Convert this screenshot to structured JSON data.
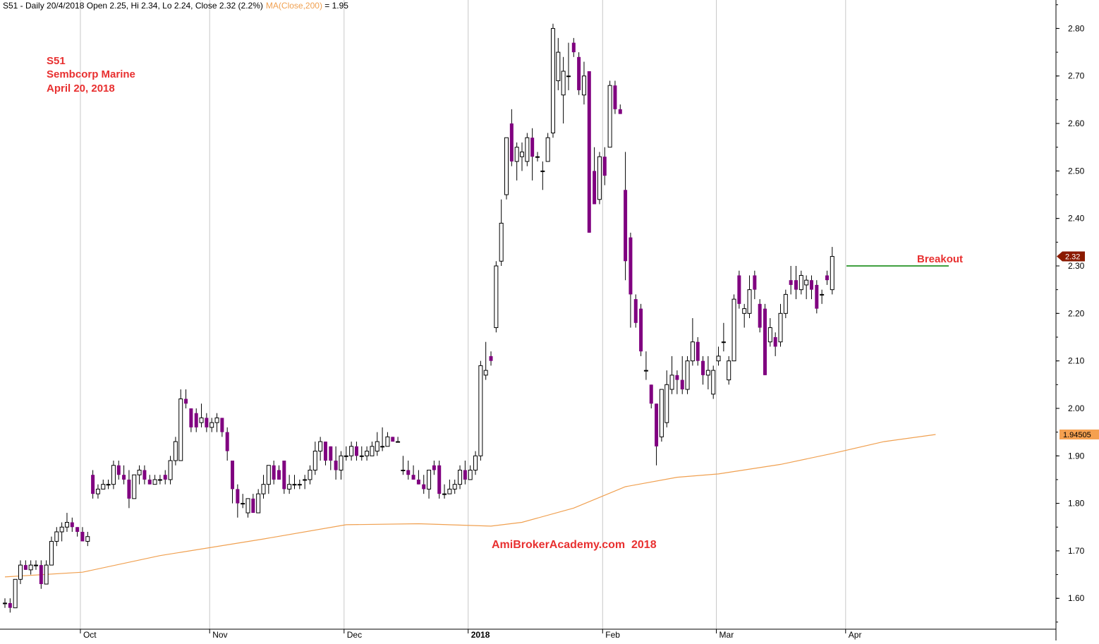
{
  "chart_data": {
    "type": "candlestick",
    "header": {
      "text": "S51 - Daily 20/4/2018 Open 2.25, Hi 2.34, Lo 2.24, Close 2.32 (2.2%)",
      "ma_label": "MA(Close,200)",
      "ma_value_text": " = 1.95"
    },
    "annotation_lines": [
      "S51",
      "Sembcorp Marine",
      "April 20, 2018"
    ],
    "watermark": "AmiBrokerAcademy.com  2018",
    "breakout_label": "Breakout",
    "breakout_level": 2.3,
    "last_price_label": "2.32",
    "ma_price_label": "1.94505",
    "y_axis": {
      "ylim": [
        1.535,
        2.86
      ],
      "ticks": [
        "1.60",
        "1.70",
        "1.80",
        "1.90",
        "2.00",
        "2.10",
        "2.20",
        "2.30",
        "2.40",
        "2.50",
        "2.60",
        "2.70",
        "2.80"
      ]
    },
    "x_axis": {
      "month_labels": [
        {
          "label": "Oct",
          "index": 15
        },
        {
          "label": "Nov",
          "index": 40
        },
        {
          "label": "Dec",
          "index": 66
        },
        {
          "label": "2018",
          "index": 90,
          "bold": true
        },
        {
          "label": "Feb",
          "index": 116
        },
        {
          "label": "Mar",
          "index": 138
        },
        {
          "label": "Apr",
          "index": 163
        }
      ]
    },
    "colors": {
      "up_fill": "#ffffff",
      "down_fill": "#800080",
      "wick": "#000000",
      "ma": "#f0a050",
      "breakout": "#008000",
      "annotation": "#e83030",
      "last_price_bg": "#8b1a00",
      "ma_tag_bg": "#f5a050"
    },
    "candles": [
      [
        1.59,
        1.6,
        1.58,
        1.59
      ],
      [
        1.59,
        1.6,
        1.57,
        1.58
      ],
      [
        1.58,
        1.64,
        1.58,
        1.64
      ],
      [
        1.64,
        1.68,
        1.63,
        1.67
      ],
      [
        1.67,
        1.68,
        1.66,
        1.66
      ],
      [
        1.66,
        1.68,
        1.65,
        1.67
      ],
      [
        1.67,
        1.68,
        1.66,
        1.67
      ],
      [
        1.67,
        1.68,
        1.62,
        1.63
      ],
      [
        1.63,
        1.68,
        1.63,
        1.67
      ],
      [
        1.67,
        1.73,
        1.67,
        1.72
      ],
      [
        1.72,
        1.75,
        1.71,
        1.74
      ],
      [
        1.74,
        1.76,
        1.72,
        1.75
      ],
      [
        1.75,
        1.78,
        1.74,
        1.76
      ],
      [
        1.76,
        1.77,
        1.74,
        1.75
      ],
      [
        1.75,
        1.75,
        1.73,
        1.74
      ],
      [
        1.74,
        1.75,
        1.72,
        1.72
      ],
      [
        1.72,
        1.74,
        1.71,
        1.73
      ],
      [
        1.86,
        1.87,
        1.81,
        1.82
      ],
      [
        1.82,
        1.84,
        1.81,
        1.83
      ],
      [
        1.83,
        1.85,
        1.83,
        1.84
      ],
      [
        1.84,
        1.85,
        1.83,
        1.84
      ],
      [
        1.84,
        1.89,
        1.83,
        1.88
      ],
      [
        1.88,
        1.89,
        1.85,
        1.86
      ],
      [
        1.86,
        1.88,
        1.84,
        1.85
      ],
      [
        1.85,
        1.87,
        1.79,
        1.81
      ],
      [
        1.81,
        1.86,
        1.81,
        1.86
      ],
      [
        1.86,
        1.88,
        1.84,
        1.87
      ],
      [
        1.87,
        1.88,
        1.84,
        1.85
      ],
      [
        1.85,
        1.86,
        1.84,
        1.84
      ],
      [
        1.84,
        1.86,
        1.84,
        1.85
      ],
      [
        1.85,
        1.86,
        1.84,
        1.85
      ],
      [
        1.86,
        1.87,
        1.84,
        1.85
      ],
      [
        1.85,
        1.9,
        1.84,
        1.89
      ],
      [
        1.89,
        1.94,
        1.88,
        1.93
      ],
      [
        1.89,
        2.04,
        1.89,
        2.02
      ],
      [
        2.02,
        2.04,
        2.0,
        2.01
      ],
      [
        2.0,
        2.0,
        1.95,
        1.96
      ],
      [
        1.99,
        2.0,
        1.95,
        1.96
      ],
      [
        1.97,
        2.01,
        1.96,
        1.98
      ],
      [
        1.98,
        1.99,
        1.95,
        1.96
      ],
      [
        1.96,
        1.98,
        1.95,
        1.97
      ],
      [
        1.97,
        1.99,
        1.95,
        1.98
      ],
      [
        1.98,
        1.98,
        1.94,
        1.95
      ],
      [
        1.95,
        1.96,
        1.89,
        1.91
      ],
      [
        1.89,
        1.89,
        1.8,
        1.83
      ],
      [
        1.83,
        1.84,
        1.77,
        1.8
      ],
      [
        1.8,
        1.82,
        1.79,
        1.8
      ],
      [
        1.78,
        1.81,
        1.77,
        1.81
      ],
      [
        1.81,
        1.82,
        1.78,
        1.78
      ],
      [
        1.78,
        1.83,
        1.78,
        1.82
      ],
      [
        1.82,
        1.86,
        1.81,
        1.84
      ],
      [
        1.84,
        1.88,
        1.82,
        1.88
      ],
      [
        1.88,
        1.89,
        1.84,
        1.85
      ],
      [
        1.87,
        1.88,
        1.85,
        1.85
      ],
      [
        1.89,
        1.89,
        1.82,
        1.83
      ],
      [
        1.83,
        1.86,
        1.82,
        1.84
      ],
      [
        1.84,
        1.86,
        1.83,
        1.84
      ],
      [
        1.84,
        1.85,
        1.83,
        1.84
      ],
      [
        1.85,
        1.86,
        1.83,
        1.85
      ],
      [
        1.85,
        1.88,
        1.84,
        1.87
      ],
      [
        1.87,
        1.93,
        1.86,
        1.91
      ],
      [
        1.91,
        1.94,
        1.89,
        1.93
      ],
      [
        1.93,
        1.93,
        1.88,
        1.89
      ],
      [
        1.92,
        1.92,
        1.87,
        1.89
      ],
      [
        1.89,
        1.92,
        1.85,
        1.87
      ],
      [
        1.87,
        1.91,
        1.85,
        1.9
      ],
      [
        1.9,
        1.92,
        1.89,
        1.9
      ],
      [
        1.9,
        1.93,
        1.89,
        1.92
      ],
      [
        1.92,
        1.93,
        1.89,
        1.9
      ],
      [
        1.9,
        1.92,
        1.89,
        1.9
      ],
      [
        1.9,
        1.92,
        1.89,
        1.91
      ],
      [
        1.9,
        1.93,
        1.9,
        1.92
      ],
      [
        1.91,
        1.95,
        1.9,
        1.93
      ],
      [
        1.92,
        1.96,
        1.91,
        1.92
      ],
      [
        1.92,
        1.95,
        1.92,
        1.94
      ],
      [
        1.94,
        1.94,
        1.93,
        1.93
      ],
      [
        1.93,
        1.94,
        1.93,
        1.93
      ],
      [
        1.87,
        1.9,
        1.86,
        1.87
      ],
      [
        1.87,
        1.89,
        1.85,
        1.86
      ],
      [
        1.86,
        1.88,
        1.85,
        1.85
      ],
      [
        1.85,
        1.87,
        1.84,
        1.84
      ],
      [
        1.84,
        1.86,
        1.82,
        1.83
      ],
      [
        1.83,
        1.87,
        1.81,
        1.87
      ],
      [
        1.88,
        1.89,
        1.86,
        1.87
      ],
      [
        1.88,
        1.89,
        1.81,
        1.82
      ],
      [
        1.82,
        1.84,
        1.81,
        1.82
      ],
      [
        1.82,
        1.85,
        1.82,
        1.83
      ],
      [
        1.83,
        1.85,
        1.82,
        1.84
      ],
      [
        1.84,
        1.88,
        1.83,
        1.87
      ],
      [
        1.87,
        1.89,
        1.84,
        1.85
      ],
      [
        1.85,
        1.88,
        1.85,
        1.87
      ],
      [
        1.87,
        1.91,
        1.86,
        1.9
      ],
      [
        1.9,
        2.1,
        1.89,
        2.09
      ],
      [
        2.07,
        2.14,
        2.06,
        2.08
      ],
      [
        2.11,
        2.12,
        2.09,
        2.1
      ],
      [
        2.17,
        2.31,
        2.16,
        2.3
      ],
      [
        2.31,
        2.44,
        2.3,
        2.39
      ],
      [
        2.45,
        2.57,
        2.44,
        2.57
      ],
      [
        2.6,
        2.63,
        2.51,
        2.52
      ],
      [
        2.52,
        2.56,
        2.48,
        2.55
      ],
      [
        2.53,
        2.56,
        2.5,
        2.54
      ],
      [
        2.52,
        2.58,
        2.51,
        2.57
      ],
      [
        2.57,
        2.59,
        2.48,
        2.53
      ],
      [
        2.53,
        2.54,
        2.52,
        2.53
      ],
      [
        2.5,
        2.52,
        2.46,
        2.5
      ],
      [
        2.52,
        2.58,
        2.52,
        2.57
      ],
      [
        2.58,
        2.81,
        2.57,
        2.8
      ],
      [
        2.69,
        2.78,
        2.67,
        2.75
      ],
      [
        2.66,
        2.74,
        2.6,
        2.71
      ],
      [
        2.7,
        2.77,
        2.67,
        2.7
      ],
      [
        2.77,
        2.78,
        2.74,
        2.75
      ],
      [
        2.74,
        2.75,
        2.66,
        2.67
      ],
      [
        2.66,
        2.73,
        2.64,
        2.7
      ],
      [
        2.71,
        2.71,
        2.37,
        2.37
      ],
      [
        2.5,
        2.55,
        2.43,
        2.43
      ],
      [
        2.44,
        2.54,
        2.43,
        2.53
      ],
      [
        2.53,
        2.55,
        2.47,
        2.49
      ],
      [
        2.55,
        2.69,
        2.55,
        2.68
      ],
      [
        2.68,
        2.69,
        2.62,
        2.63
      ],
      [
        2.63,
        2.64,
        2.62,
        2.62
      ],
      [
        2.46,
        2.54,
        2.27,
        2.31
      ],
      [
        2.36,
        2.37,
        2.17,
        2.24
      ],
      [
        2.23,
        2.24,
        2.17,
        2.18
      ],
      [
        2.21,
        2.22,
        2.11,
        2.12
      ],
      [
        2.08,
        2.12,
        2.06,
        2.08
      ],
      [
        2.05,
        2.05,
        2.0,
        2.01
      ],
      [
        2.01,
        2.01,
        1.88,
        1.92
      ],
      [
        1.94,
        2.04,
        1.93,
        2.04
      ],
      [
        1.97,
        2.08,
        1.96,
        2.05
      ],
      [
        2.04,
        2.11,
        2.03,
        2.07
      ],
      [
        2.07,
        2.08,
        2.03,
        2.06
      ],
      [
        2.06,
        2.11,
        2.03,
        2.04
      ],
      [
        2.04,
        2.11,
        2.03,
        2.1
      ],
      [
        2.1,
        2.19,
        2.09,
        2.14
      ],
      [
        2.14,
        2.15,
        2.09,
        2.1
      ],
      [
        2.1,
        2.11,
        2.05,
        2.07
      ],
      [
        2.07,
        2.11,
        2.04,
        2.08
      ],
      [
        2.03,
        2.09,
        2.02,
        2.08
      ],
      [
        2.1,
        2.13,
        2.09,
        2.11
      ],
      [
        2.14,
        2.18,
        2.12,
        2.14
      ],
      [
        2.06,
        2.11,
        2.05,
        2.1
      ],
      [
        2.1,
        2.24,
        2.1,
        2.23
      ],
      [
        2.28,
        2.29,
        2.21,
        2.22
      ],
      [
        2.2,
        2.22,
        2.17,
        2.21
      ],
      [
        2.2,
        2.28,
        2.19,
        2.25
      ],
      [
        2.28,
        2.29,
        2.23,
        2.25
      ],
      [
        2.22,
        2.23,
        2.16,
        2.17
      ],
      [
        2.21,
        2.22,
        2.07,
        2.07
      ],
      [
        2.14,
        2.19,
        2.13,
        2.17
      ],
      [
        2.15,
        2.16,
        2.11,
        2.13
      ],
      [
        2.14,
        2.22,
        2.13,
        2.2
      ],
      [
        2.2,
        2.25,
        2.19,
        2.24
      ],
      [
        2.27,
        2.3,
        2.24,
        2.26
      ],
      [
        2.27,
        2.3,
        2.23,
        2.25
      ],
      [
        2.25,
        2.29,
        2.24,
        2.28
      ],
      [
        2.26,
        2.28,
        2.23,
        2.27
      ],
      [
        2.27,
        2.28,
        2.23,
        2.25
      ],
      [
        2.26,
        2.27,
        2.2,
        2.21
      ],
      [
        2.24,
        2.25,
        2.22,
        2.24
      ],
      [
        2.28,
        2.29,
        2.26,
        2.27
      ],
      [
        2.25,
        2.34,
        2.24,
        2.32
      ]
    ],
    "ma": [
      [
        0,
        1.645
      ],
      [
        15,
        1.655
      ],
      [
        30,
        1.69
      ],
      [
        50,
        1.725
      ],
      [
        66,
        1.755
      ],
      [
        80,
        1.757
      ],
      [
        94,
        1.752
      ],
      [
        100,
        1.76
      ],
      [
        110,
        1.79
      ],
      [
        120,
        1.835
      ],
      [
        130,
        1.855
      ],
      [
        138,
        1.862
      ],
      [
        150,
        1.882
      ],
      [
        160,
        1.905
      ],
      [
        170,
        1.93
      ],
      [
        180,
        1.945
      ]
    ]
  }
}
